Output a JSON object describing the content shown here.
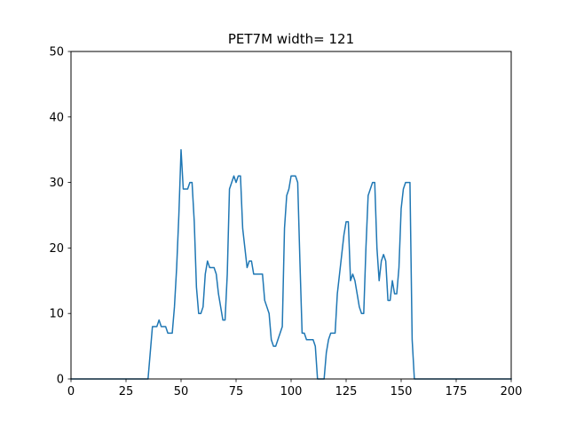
{
  "chart_data": {
    "type": "line",
    "title": "PET7M width= 121",
    "xlabel": "",
    "ylabel": "",
    "xlim": [
      0,
      200
    ],
    "ylim": [
      0,
      50
    ],
    "xticks": [
      0,
      25,
      50,
      75,
      100,
      125,
      150,
      175,
      200
    ],
    "yticks": [
      0,
      10,
      20,
      30,
      40,
      50
    ],
    "grid": false,
    "color": "#1f77b4",
    "series": [
      {
        "x": [
          0,
          35,
          37,
          38,
          39,
          40,
          41,
          42,
          43,
          44,
          45,
          46,
          47,
          48,
          49,
          50,
          51,
          52,
          53,
          54,
          55,
          56,
          57,
          58,
          59,
          60,
          61,
          62,
          63,
          64,
          65,
          66,
          67,
          68,
          69,
          70,
          71,
          72,
          73,
          74,
          75,
          76,
          77,
          78,
          79,
          80,
          81,
          82,
          83,
          84,
          85,
          86,
          87,
          88,
          89,
          90,
          91,
          92,
          93,
          94,
          95,
          96,
          97,
          98,
          99,
          100,
          101,
          102,
          103,
          104,
          105,
          106,
          107,
          108,
          109,
          110,
          111,
          112,
          113,
          114,
          115,
          116,
          117,
          118,
          119,
          120,
          121,
          122,
          123,
          124,
          125,
          126,
          127,
          128,
          129,
          130,
          131,
          132,
          133,
          134,
          135,
          136,
          137,
          138,
          139,
          140,
          141,
          142,
          143,
          144,
          145,
          146,
          147,
          148,
          149,
          150,
          151,
          152,
          153,
          154,
          155,
          156,
          157,
          200
        ],
        "y": [
          0,
          0,
          8,
          8,
          8,
          9,
          8,
          8,
          8,
          7,
          7,
          7,
          11,
          17,
          25,
          35,
          29,
          29,
          29,
          30,
          30,
          24,
          14,
          10,
          10,
          11,
          16,
          18,
          17,
          17,
          17,
          16,
          13,
          11,
          9,
          9,
          16,
          29,
          30,
          31,
          30,
          31,
          31,
          23,
          20,
          17,
          18,
          18,
          16,
          16,
          16,
          16,
          16,
          12,
          11,
          10,
          6,
          5,
          5,
          6,
          7,
          8,
          23,
          28,
          29,
          31,
          31,
          31,
          30,
          18,
          7,
          7,
          6,
          6,
          6,
          6,
          5,
          0,
          0,
          0,
          0,
          4,
          6,
          7,
          7,
          7,
          13,
          16,
          19,
          22,
          24,
          24,
          15,
          16,
          15,
          13,
          11,
          10,
          10,
          20,
          28,
          29,
          30,
          30,
          20,
          15,
          18,
          19,
          18,
          12,
          12,
          15,
          13,
          13,
          17,
          26,
          29,
          30,
          30,
          30,
          6,
          0,
          0,
          0
        ]
      }
    ]
  }
}
